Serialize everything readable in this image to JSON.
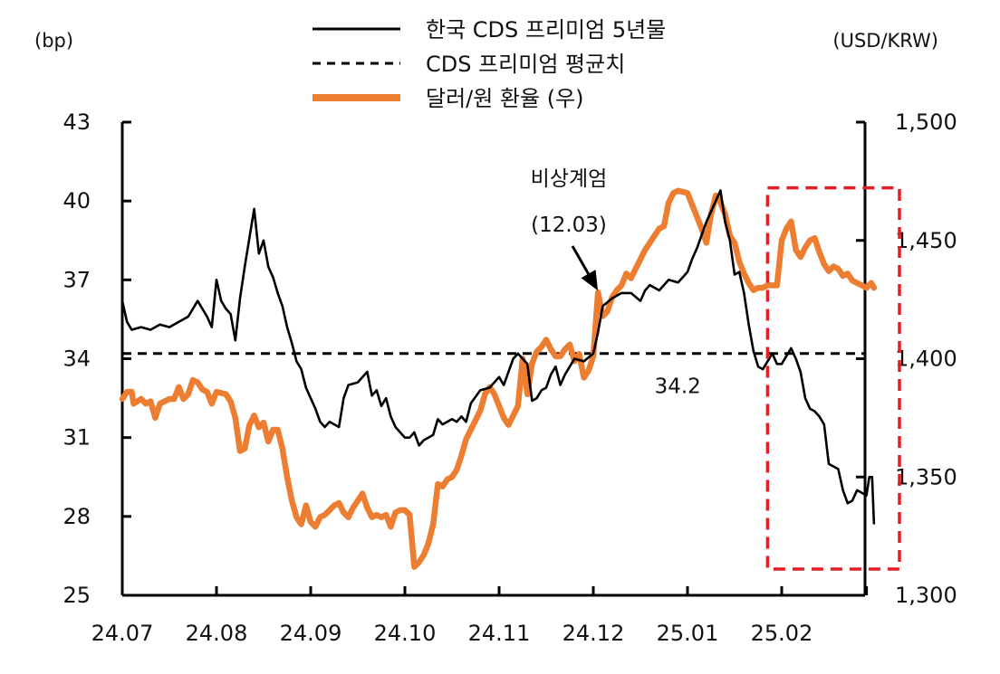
{
  "chart_data": {
    "type": "line",
    "left_unit": "(bp)",
    "right_unit": "(USD/KRW)",
    "left_axis": {
      "min": 25,
      "max": 43,
      "ticks": [
        25,
        28,
        31,
        34,
        37,
        40,
        43
      ]
    },
    "right_axis": {
      "min": 1300,
      "max": 1500,
      "ticks": [
        1300,
        1350,
        1400,
        1450,
        1500
      ],
      "tick_labels": [
        "1,300",
        "1,350",
        "1,400",
        "1,450",
        "1,500"
      ]
    },
    "x_ticks": [
      "24.07",
      "24.08",
      "24.09",
      "24.10",
      "24.11",
      "24.12",
      "25.01",
      "25.02"
    ],
    "legend": [
      {
        "label": "한국 CDS 프리미엄 5년물",
        "style": "solid",
        "color": "#000000"
      },
      {
        "label": "CDS 프리미엄 평균치",
        "style": "dashed",
        "color": "#000000"
      },
      {
        "label": "달러/원 환율 (우)",
        "style": "solid-thick",
        "color": "#ed7d31"
      }
    ],
    "average_value": 34.2,
    "average_label": "34.2",
    "annotation": {
      "line1": "비상계엄",
      "line2": "(12.03)",
      "x": 5.05,
      "y": 36.5
    },
    "highlight_box": {
      "x_from": 6.85,
      "x_to": 8.25,
      "y_from": 26.0,
      "y_to": 40.5,
      "color": "#e31f26"
    },
    "series": [
      {
        "name": "한국 CDS 프리미엄 5년물",
        "axis": "left",
        "points": [
          [
            0.0,
            36.2
          ],
          [
            0.05,
            35.4
          ],
          [
            0.1,
            35.1
          ],
          [
            0.2,
            35.2
          ],
          [
            0.3,
            35.1
          ],
          [
            0.4,
            35.3
          ],
          [
            0.5,
            35.2
          ],
          [
            0.6,
            35.4
          ],
          [
            0.7,
            35.6
          ],
          [
            0.8,
            36.2
          ],
          [
            0.9,
            35.6
          ],
          [
            0.95,
            35.2
          ],
          [
            1.0,
            37.0
          ],
          [
            1.05,
            36.2
          ],
          [
            1.1,
            35.9
          ],
          [
            1.15,
            35.7
          ],
          [
            1.2,
            34.7
          ],
          [
            1.25,
            36.3
          ],
          [
            1.3,
            37.5
          ],
          [
            1.35,
            38.6
          ],
          [
            1.4,
            39.7
          ],
          [
            1.45,
            38.0
          ],
          [
            1.5,
            38.5
          ],
          [
            1.55,
            37.5
          ],
          [
            1.6,
            37.1
          ],
          [
            1.65,
            36.5
          ],
          [
            1.7,
            36.0
          ],
          [
            1.75,
            35.2
          ],
          [
            1.8,
            34.6
          ],
          [
            1.85,
            33.9
          ],
          [
            1.9,
            33.6
          ],
          [
            1.95,
            32.9
          ],
          [
            2.0,
            32.5
          ],
          [
            2.05,
            32.1
          ],
          [
            2.1,
            31.6
          ],
          [
            2.15,
            31.4
          ],
          [
            2.2,
            31.6
          ],
          [
            2.3,
            31.4
          ],
          [
            2.35,
            32.5
          ],
          [
            2.4,
            33.0
          ],
          [
            2.5,
            33.1
          ],
          [
            2.6,
            33.5
          ],
          [
            2.65,
            32.6
          ],
          [
            2.7,
            32.8
          ],
          [
            2.75,
            32.2
          ],
          [
            2.8,
            32.5
          ],
          [
            2.85,
            31.8
          ],
          [
            2.9,
            31.4
          ],
          [
            2.95,
            31.2
          ],
          [
            3.0,
            31.0
          ],
          [
            3.05,
            31.0
          ],
          [
            3.1,
            31.2
          ],
          [
            3.15,
            30.7
          ],
          [
            3.2,
            30.9
          ],
          [
            3.3,
            31.1
          ],
          [
            3.35,
            31.7
          ],
          [
            3.4,
            31.5
          ],
          [
            3.5,
            31.7
          ],
          [
            3.55,
            31.6
          ],
          [
            3.6,
            31.8
          ],
          [
            3.65,
            31.6
          ],
          [
            3.7,
            32.3
          ],
          [
            3.8,
            32.8
          ],
          [
            3.9,
            32.9
          ],
          [
            4.0,
            33.3
          ],
          [
            4.05,
            33.0
          ],
          [
            4.1,
            33.5
          ],
          [
            4.15,
            34.0
          ],
          [
            4.2,
            34.2
          ],
          [
            4.3,
            33.8
          ],
          [
            4.35,
            32.4
          ],
          [
            4.4,
            32.5
          ],
          [
            4.45,
            32.8
          ],
          [
            4.5,
            32.9
          ],
          [
            4.55,
            33.4
          ],
          [
            4.6,
            33.7
          ],
          [
            4.65,
            33.0
          ],
          [
            4.7,
            33.4
          ],
          [
            4.8,
            34.0
          ],
          [
            4.9,
            33.9
          ],
          [
            5.0,
            34.2
          ],
          [
            5.05,
            35.0
          ],
          [
            5.1,
            36.0
          ],
          [
            5.2,
            36.3
          ],
          [
            5.3,
            36.5
          ],
          [
            5.4,
            36.5
          ],
          [
            5.5,
            36.2
          ],
          [
            5.55,
            36.6
          ],
          [
            5.6,
            36.8
          ],
          [
            5.7,
            36.6
          ],
          [
            5.8,
            37.0
          ],
          [
            5.9,
            36.9
          ],
          [
            6.0,
            37.3
          ],
          [
            6.05,
            37.8
          ],
          [
            6.1,
            38.2
          ],
          [
            6.15,
            38.7
          ],
          [
            6.2,
            39.2
          ],
          [
            6.25,
            39.6
          ],
          [
            6.3,
            40.0
          ],
          [
            6.35,
            40.4
          ],
          [
            6.4,
            39.2
          ],
          [
            6.45,
            38.5
          ],
          [
            6.5,
            37.2
          ],
          [
            6.55,
            37.3
          ],
          [
            6.6,
            36.5
          ],
          [
            6.65,
            35.3
          ],
          [
            6.7,
            34.3
          ],
          [
            6.75,
            33.7
          ],
          [
            6.8,
            33.6
          ],
          [
            6.85,
            33.9
          ],
          [
            6.9,
            34.2
          ],
          [
            6.95,
            33.8
          ],
          [
            7.0,
            33.8
          ],
          [
            7.05,
            34.1
          ],
          [
            7.1,
            34.4
          ],
          [
            7.15,
            34.0
          ],
          [
            7.2,
            33.5
          ],
          [
            7.25,
            32.5
          ],
          [
            7.3,
            32.1
          ],
          [
            7.35,
            32.0
          ],
          [
            7.4,
            31.8
          ],
          [
            7.45,
            31.5
          ],
          [
            7.5,
            30.0
          ],
          [
            7.55,
            29.9
          ],
          [
            7.6,
            29.8
          ],
          [
            7.65,
            29.0
          ],
          [
            7.7,
            28.5
          ],
          [
            7.75,
            28.6
          ],
          [
            7.8,
            29.0
          ],
          [
            7.85,
            28.9
          ],
          [
            7.9,
            28.8
          ],
          [
            7.93,
            29.5
          ],
          [
            7.96,
            29.5
          ],
          [
            7.98,
            27.7
          ]
        ]
      },
      {
        "name": "달러/원 환율 (우)",
        "axis": "right",
        "points": [
          [
            0.0,
            1383
          ],
          [
            0.05,
            1386
          ],
          [
            0.1,
            1386
          ],
          [
            0.12,
            1381
          ],
          [
            0.2,
            1383
          ],
          [
            0.25,
            1381
          ],
          [
            0.3,
            1382
          ],
          [
            0.35,
            1375
          ],
          [
            0.4,
            1381
          ],
          [
            0.5,
            1383
          ],
          [
            0.55,
            1383
          ],
          [
            0.6,
            1388
          ],
          [
            0.65,
            1383
          ],
          [
            0.7,
            1385
          ],
          [
            0.75,
            1391
          ],
          [
            0.8,
            1390
          ],
          [
            0.85,
            1387
          ],
          [
            0.9,
            1386
          ],
          [
            0.95,
            1381
          ],
          [
            1.0,
            1386
          ],
          [
            1.1,
            1385
          ],
          [
            1.15,
            1382
          ],
          [
            1.2,
            1375
          ],
          [
            1.25,
            1361
          ],
          [
            1.3,
            1362
          ],
          [
            1.35,
            1372
          ],
          [
            1.4,
            1376
          ],
          [
            1.45,
            1371
          ],
          [
            1.5,
            1373
          ],
          [
            1.55,
            1365
          ],
          [
            1.6,
            1370
          ],
          [
            1.65,
            1370
          ],
          [
            1.7,
            1362
          ],
          [
            1.75,
            1350
          ],
          [
            1.8,
            1340
          ],
          [
            1.85,
            1333
          ],
          [
            1.9,
            1330
          ],
          [
            1.95,
            1338
          ],
          [
            2.0,
            1331
          ],
          [
            2.05,
            1329
          ],
          [
            2.1,
            1333
          ],
          [
            2.15,
            1334
          ],
          [
            2.2,
            1336
          ],
          [
            2.25,
            1338
          ],
          [
            2.3,
            1339
          ],
          [
            2.35,
            1335
          ],
          [
            2.4,
            1333
          ],
          [
            2.45,
            1337
          ],
          [
            2.5,
            1340
          ],
          [
            2.55,
            1343
          ],
          [
            2.6,
            1337
          ],
          [
            2.65,
            1333
          ],
          [
            2.7,
            1334
          ],
          [
            2.75,
            1333
          ],
          [
            2.8,
            1334
          ],
          [
            2.85,
            1329
          ],
          [
            2.9,
            1335
          ],
          [
            2.95,
            1336
          ],
          [
            3.0,
            1336
          ],
          [
            3.05,
            1334
          ],
          [
            3.1,
            1312
          ],
          [
            3.15,
            1314
          ],
          [
            3.2,
            1317
          ],
          [
            3.25,
            1322
          ],
          [
            3.3,
            1330
          ],
          [
            3.35,
            1347
          ],
          [
            3.4,
            1346
          ],
          [
            3.45,
            1349
          ],
          [
            3.5,
            1350
          ],
          [
            3.55,
            1353
          ],
          [
            3.6,
            1359
          ],
          [
            3.65,
            1366
          ],
          [
            3.7,
            1370
          ],
          [
            3.75,
            1374
          ],
          [
            3.8,
            1378
          ],
          [
            3.85,
            1385
          ],
          [
            3.9,
            1388
          ],
          [
            3.95,
            1385
          ],
          [
            4.0,
            1380
          ],
          [
            4.05,
            1375
          ],
          [
            4.1,
            1372
          ],
          [
            4.15,
            1376
          ],
          [
            4.2,
            1380
          ],
          [
            4.25,
            1400
          ],
          [
            4.3,
            1385
          ],
          [
            4.35,
            1398
          ],
          [
            4.4,
            1403
          ],
          [
            4.45,
            1405
          ],
          [
            4.5,
            1408
          ],
          [
            4.55,
            1404
          ],
          [
            4.6,
            1401
          ],
          [
            4.65,
            1401
          ],
          [
            4.7,
            1404
          ],
          [
            4.75,
            1406
          ],
          [
            4.8,
            1399
          ],
          [
            4.85,
            1402
          ],
          [
            4.9,
            1392
          ],
          [
            4.95,
            1395
          ],
          [
            5.0,
            1401
          ],
          [
            5.05,
            1428
          ],
          [
            5.1,
            1418
          ],
          [
            5.15,
            1420
          ],
          [
            5.2,
            1426
          ],
          [
            5.25,
            1429
          ],
          [
            5.3,
            1431
          ],
          [
            5.35,
            1436
          ],
          [
            5.4,
            1434
          ],
          [
            5.45,
            1438
          ],
          [
            5.5,
            1442
          ],
          [
            5.55,
            1446
          ],
          [
            5.6,
            1449
          ],
          [
            5.65,
            1452
          ],
          [
            5.7,
            1455
          ],
          [
            5.75,
            1456
          ],
          [
            5.8,
            1466
          ],
          [
            5.85,
            1470
          ],
          [
            5.9,
            1471
          ],
          [
            6.0,
            1470
          ],
          [
            6.05,
            1465
          ],
          [
            6.1,
            1460
          ],
          [
            6.15,
            1455
          ],
          [
            6.2,
            1449
          ],
          [
            6.25,
            1461
          ],
          [
            6.3,
            1469
          ],
          [
            6.35,
            1466
          ],
          [
            6.4,
            1461
          ],
          [
            6.45,
            1452
          ],
          [
            6.5,
            1449
          ],
          [
            6.55,
            1441
          ],
          [
            6.6,
            1436
          ],
          [
            6.65,
            1432
          ],
          [
            6.7,
            1429
          ],
          [
            6.75,
            1430
          ],
          [
            6.8,
            1430
          ],
          [
            6.85,
            1431
          ],
          [
            6.9,
            1431
          ],
          [
            6.95,
            1431
          ],
          [
            7.0,
            1450
          ],
          [
            7.05,
            1455
          ],
          [
            7.1,
            1458
          ],
          [
            7.15,
            1446
          ],
          [
            7.2,
            1443
          ],
          [
            7.25,
            1447
          ],
          [
            7.3,
            1450
          ],
          [
            7.35,
            1451
          ],
          [
            7.4,
            1445
          ],
          [
            7.45,
            1440
          ],
          [
            7.5,
            1437
          ],
          [
            7.55,
            1439
          ],
          [
            7.6,
            1438
          ],
          [
            7.65,
            1435
          ],
          [
            7.7,
            1436
          ],
          [
            7.75,
            1433
          ],
          [
            7.8,
            1432
          ],
          [
            7.85,
            1431
          ],
          [
            7.9,
            1430
          ],
          [
            7.95,
            1432
          ],
          [
            7.98,
            1430
          ]
        ]
      }
    ]
  }
}
